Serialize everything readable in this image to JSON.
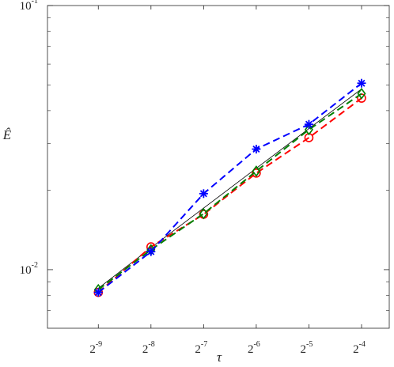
{
  "chart_data": {
    "type": "line",
    "xscale": "log2",
    "yscale": "log10",
    "xlabel": "τ",
    "ylabel": "Ê",
    "xlim": [
      0.001,
      0.09
    ],
    "ylim": [
      0.006,
      0.1
    ],
    "xticks": [
      {
        "value": 0.001953125,
        "base": "2",
        "exp": "-9"
      },
      {
        "value": 0.00390625,
        "base": "2",
        "exp": "-8"
      },
      {
        "value": 0.0078125,
        "base": "2",
        "exp": "-7"
      },
      {
        "value": 0.015625,
        "base": "2",
        "exp": "-6"
      },
      {
        "value": 0.03125,
        "base": "2",
        "exp": "-5"
      },
      {
        "value": 0.0625,
        "base": "2",
        "exp": "-4"
      }
    ],
    "yticks": [
      {
        "value": 0.01,
        "base": "10",
        "exp": "-2"
      },
      {
        "value": 0.1,
        "base": "10",
        "exp": "-1"
      }
    ],
    "x": [
      0.001953125,
      0.00390625,
      0.0078125,
      0.015625,
      0.03125,
      0.0625
    ],
    "series": [
      {
        "color": "#ff0000",
        "marker": "circle",
        "dash": true,
        "values": [
          0.0082,
          0.0122,
          0.0162,
          0.0232,
          0.0316,
          0.0446
        ]
      },
      {
        "color": "#0000ff",
        "marker": "asterisk",
        "dash": true,
        "values": [
          0.0082,
          0.0117,
          0.0194,
          0.0286,
          0.0355,
          0.0508
        ]
      },
      {
        "color": "#008000",
        "marker": "diamond",
        "dash": true,
        "values": [
          0.0084,
          0.0119,
          0.0163,
          0.0236,
          0.0339,
          0.0464
        ]
      },
      {
        "color": "#000000",
        "marker": "none",
        "dash": false,
        "values": [
          0.0085,
          0.0121,
          0.0171,
          0.0242,
          0.0342,
          0.0483
        ]
      }
    ]
  }
}
